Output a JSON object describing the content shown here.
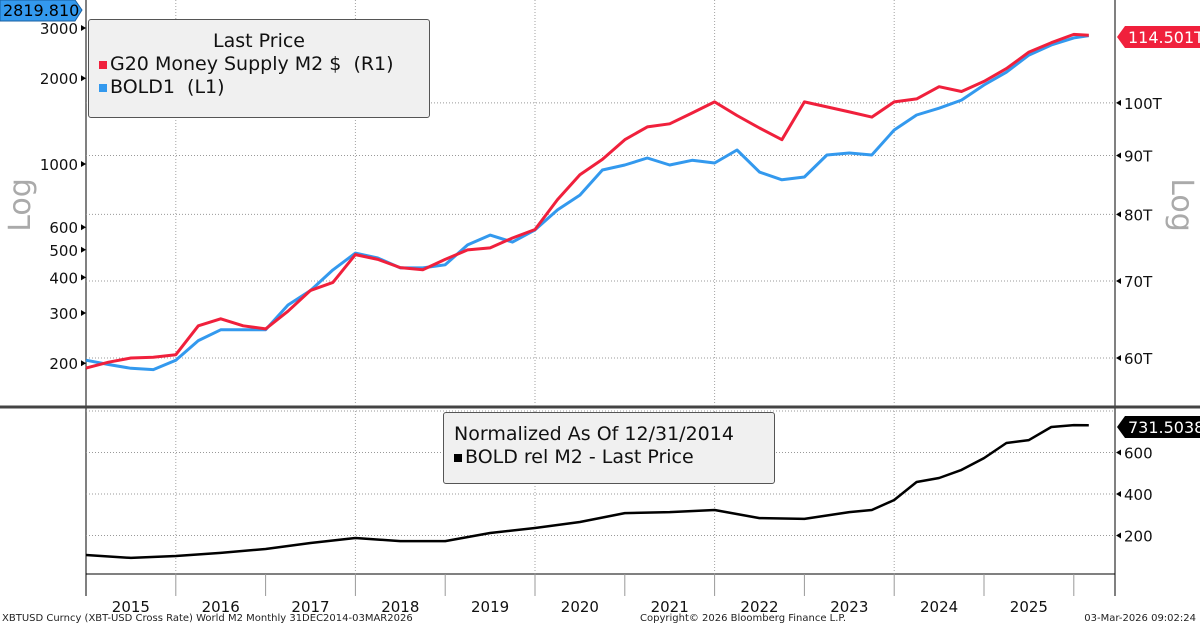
{
  "chart_data": [
    {
      "type": "line",
      "panel": "top",
      "scale": "log",
      "left_axis": {
        "label": "Log",
        "ticks": [
          200,
          300,
          400,
          500,
          600,
          1000,
          2000,
          3000
        ],
        "range": [
          170,
          3300
        ]
      },
      "right_axis": {
        "label": "Log",
        "ticks": [
          "60T",
          "70T",
          "80T",
          "90T",
          "100T"
        ],
        "tick_values": [
          60,
          70,
          80,
          90,
          100
        ],
        "range": [
          58,
          118
        ]
      },
      "legend": {
        "title": "Last Price",
        "position": "top-left"
      },
      "grid": true,
      "series": [
        {
          "name": "G20 Money Supply M2 $  (R1)",
          "axis": "right",
          "color": "#f0203c",
          "last_label": "114.501T",
          "x": [
            "2015-01",
            "2015-04",
            "2015-07",
            "2015-10",
            "2016-01",
            "2016-04",
            "2016-07",
            "2016-10",
            "2017-01",
            "2017-04",
            "2017-07",
            "2017-10",
            "2018-01",
            "2018-04",
            "2018-07",
            "2018-10",
            "2019-01",
            "2019-04",
            "2019-07",
            "2019-10",
            "2020-01",
            "2020-04",
            "2020-07",
            "2020-10",
            "2021-01",
            "2021-04",
            "2021-07",
            "2021-10",
            "2022-01",
            "2022-04",
            "2022-07",
            "2022-10",
            "2023-01",
            "2023-04",
            "2023-07",
            "2023-10",
            "2024-01",
            "2024-04",
            "2024-07",
            "2024-10",
            "2025-01",
            "2025-04",
            "2025-07",
            "2025-10",
            "2026-01",
            "2026-03"
          ],
          "y": [
            58.8,
            59.5,
            60,
            60.1,
            60.4,
            64,
            64.9,
            64,
            63.6,
            65.9,
            68.7,
            69.8,
            73.8,
            73.1,
            71.9,
            71.6,
            73.1,
            74.5,
            74.8,
            76.3,
            77.6,
            82.4,
            86.6,
            89.3,
            92.9,
            95.3,
            95.9,
            98,
            100.2,
            97.5,
            95.1,
            92.9,
            100.2,
            99.2,
            98.2,
            97.2,
            100.2,
            100.8,
            103.3,
            102.3,
            104.4,
            107.1,
            110.7,
            112.8,
            114.7,
            114.5
          ]
        },
        {
          "name": "BOLD1  (L1)",
          "axis": "left",
          "color": "#3399ee",
          "last_label": "2819.810",
          "x": [
            "2015-01",
            "2015-04",
            "2015-07",
            "2015-10",
            "2016-01",
            "2016-04",
            "2016-07",
            "2016-10",
            "2017-01",
            "2017-04",
            "2017-07",
            "2017-10",
            "2018-01",
            "2018-04",
            "2018-07",
            "2018-10",
            "2019-01",
            "2019-04",
            "2019-07",
            "2019-10",
            "2020-01",
            "2020-04",
            "2020-07",
            "2020-10",
            "2021-01",
            "2021-04",
            "2021-07",
            "2021-10",
            "2022-01",
            "2022-04",
            "2022-07",
            "2022-10",
            "2023-01",
            "2023-04",
            "2023-07",
            "2023-10",
            "2024-01",
            "2024-04",
            "2024-07",
            "2024-10",
            "2025-01",
            "2025-04",
            "2025-07",
            "2025-10",
            "2026-01",
            "2026-03"
          ],
          "y": [
            205,
            198,
            192,
            190,
            205,
            240,
            262,
            262,
            262,
            320,
            360,
            425,
            487,
            468,
            432,
            432,
            443,
            520,
            563,
            532,
            587,
            690,
            778,
            953,
            992,
            1050,
            992,
            1030,
            1008,
            1120,
            937,
            880,
            900,
            1075,
            1093,
            1075,
            1316,
            1486,
            1570,
            1676,
            1893,
            2100,
            2410,
            2616,
            2770,
            2820
          ]
        }
      ]
    },
    {
      "type": "line",
      "panel": "bottom",
      "scale": "linear",
      "right_axis": {
        "ticks": [
          200,
          400,
          600
        ],
        "range": [
          0,
          800
        ]
      },
      "legend": {
        "title": "Normalized As Of 12/31/2014",
        "position": "top-center"
      },
      "series": [
        {
          "name": "BOLD rel M2 - Last Price",
          "color": "#000000",
          "last_label": "731.5038",
          "x": [
            "2015-01",
            "2015-07",
            "2016-01",
            "2016-07",
            "2017-01",
            "2017-07",
            "2018-01",
            "2018-07",
            "2019-01",
            "2019-07",
            "2020-01",
            "2020-07",
            "2021-01",
            "2021-07",
            "2022-01",
            "2022-07",
            "2023-01",
            "2023-07",
            "2023-10",
            "2024-01",
            "2024-04",
            "2024-07",
            "2024-10",
            "2025-01",
            "2025-04",
            "2025-07",
            "2025-10",
            "2026-01",
            "2026-03"
          ],
          "y": [
            106,
            92,
            101,
            116,
            135,
            164,
            188,
            173,
            173,
            212,
            236,
            265,
            308,
            313,
            323,
            284,
            280,
            313,
            323,
            371,
            458,
            477,
            516,
            573,
            646,
            660,
            723,
            732,
            731.5
          ]
        }
      ]
    }
  ],
  "x_axis": {
    "ticks": [
      "2015",
      "2016",
      "2017",
      "2018",
      "2019",
      "2020",
      "2021",
      "2022",
      "2023",
      "2024",
      "2025"
    ]
  },
  "footer": {
    "left": "XBTUSD Curncy (XBT-USD Cross Rate) World M2 Monthly 31DEC2014-03MAR2026",
    "center": "Copyright© 2026 Bloomberg Finance L.P.",
    "right": "03-Mar-2026 09:02:24"
  }
}
